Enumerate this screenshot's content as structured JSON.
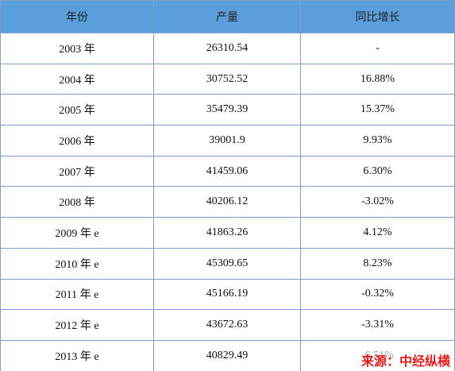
{
  "table": {
    "header": [
      "年份",
      "产量",
      "同比增长"
    ],
    "rows": [
      [
        "2003 年",
        "26310.54",
        "-"
      ],
      [
        "2004 年",
        "30752.52",
        "16.88%"
      ],
      [
        "2005 年",
        "35479.39",
        "15.37%"
      ],
      [
        "2006 年",
        "39001.9",
        "9.93%"
      ],
      [
        "2007 年",
        "41459.06",
        "6.30%"
      ],
      [
        "2008 年",
        "40206.12",
        "-3.02%"
      ],
      [
        "2009 年 e",
        "41863.26",
        "4.12%"
      ],
      [
        "2010 年 e",
        "45309.65",
        "8.23%"
      ],
      [
        "2011 年 e",
        "45166.19",
        "-0.32%"
      ],
      [
        "2012 年 e",
        "43672.63",
        "-3.31%"
      ],
      [
        "2013 年 e",
        "40829.49",
        "-6.51%"
      ]
    ]
  },
  "source": "来源：中经纵横"
}
